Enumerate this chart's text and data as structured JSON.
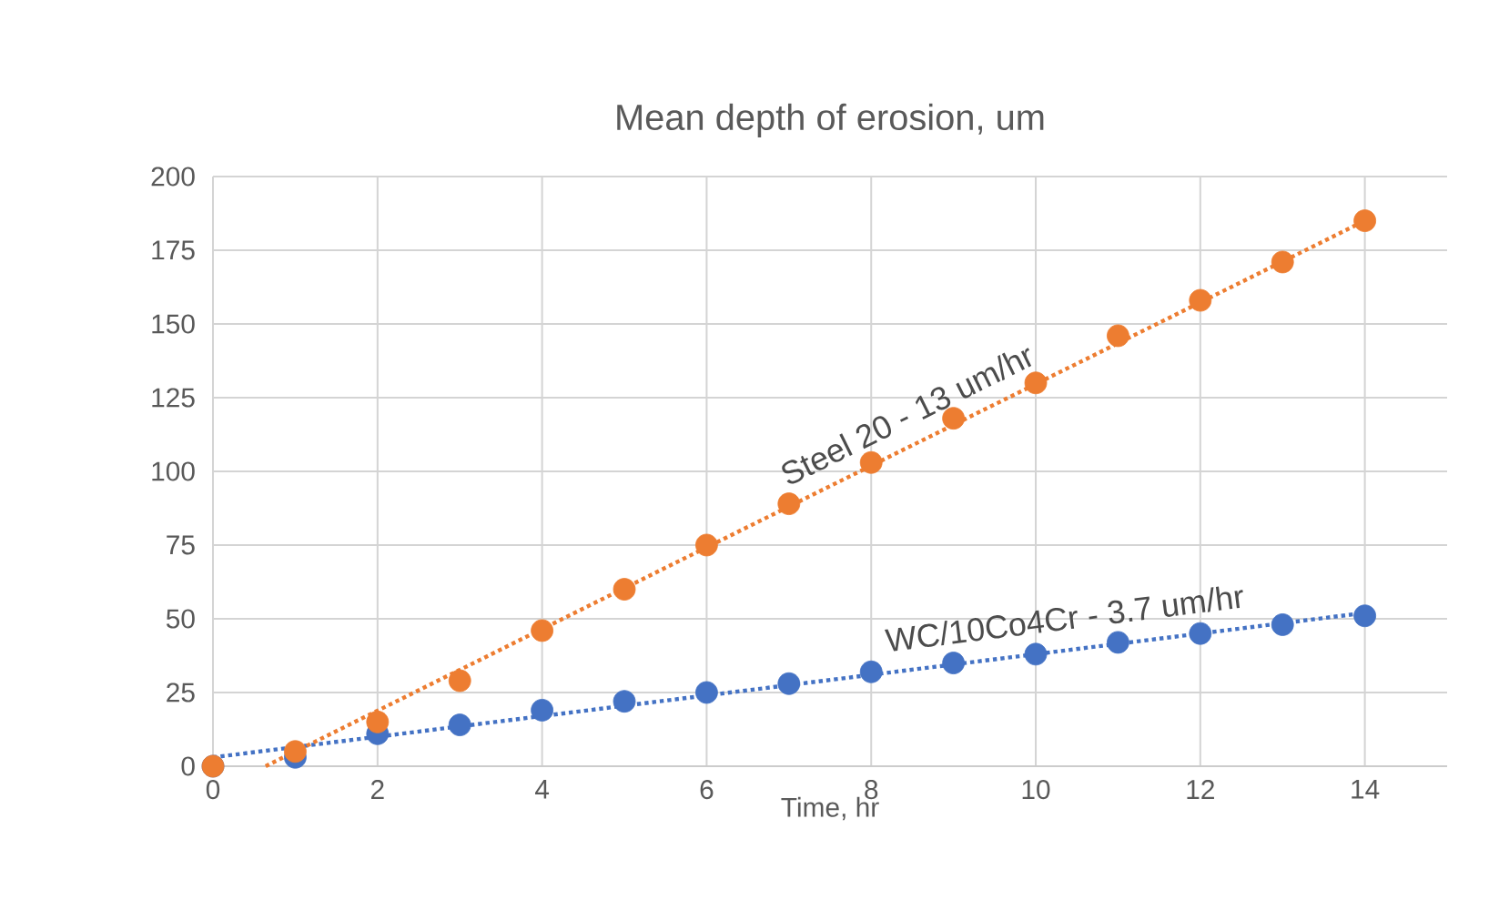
{
  "chart_data": {
    "type": "scatter",
    "title": "Mean depth of erosion, um",
    "xlabel": "Time, hr",
    "xlim": [
      0,
      15
    ],
    "ylim": [
      0,
      200
    ],
    "xticks": [
      0,
      2,
      4,
      6,
      8,
      10,
      12,
      14
    ],
    "yticks": [
      0,
      25,
      50,
      75,
      100,
      125,
      150,
      175,
      200
    ],
    "grid": true,
    "marker": "circle",
    "series": [
      {
        "color": "#ed7d31",
        "x": [
          0,
          1,
          2,
          3,
          4,
          5,
          6,
          7,
          8,
          9,
          10,
          11,
          12,
          13,
          14
        ],
        "values": [
          0,
          5,
          15,
          29,
          46,
          60,
          75,
          89,
          103,
          118,
          130,
          146,
          158,
          171,
          185
        ]
      },
      {
        "color": "#4472c4",
        "x": [
          0,
          1,
          2,
          3,
          4,
          5,
          6,
          7,
          8,
          9,
          10,
          11,
          12,
          13,
          14
        ],
        "values": [
          0,
          3,
          11,
          14,
          19,
          22,
          25,
          28,
          32,
          35,
          38,
          42,
          45,
          48,
          51
        ]
      },
      {
        "type": "line",
        "color": "#ed7d31",
        "line_style": "dotted",
        "marker": "none",
        "x": [
          0.64,
          14
        ],
        "values": [
          0,
          185
        ]
      },
      {
        "type": "line",
        "color": "#4472c4",
        "line_style": "dotted",
        "marker": "none",
        "x": [
          0,
          14
        ],
        "values": [
          3,
          52
        ]
      }
    ],
    "annotations": [
      {
        "text": "Steel 20 - 13 um/hr",
        "x": 8.6,
        "y": 110
      },
      {
        "text": "WC/10Co4Cr - 3.7 um/hr",
        "x": 10.4,
        "y": 40
      }
    ]
  }
}
